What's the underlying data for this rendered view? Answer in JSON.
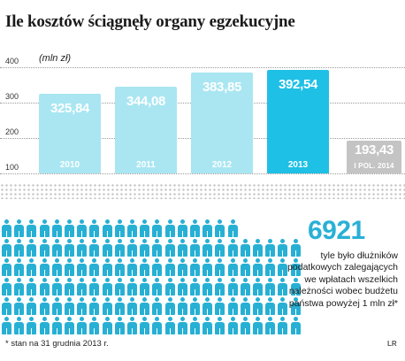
{
  "title": "Ile kosztów ściągnęły organy egzekucyjne",
  "unit_label": "(mln zł)",
  "chart_data": {
    "type": "bar",
    "title": "Ile kosztów ściągnęły organy egzekucyjne",
    "ylabel": "(mln zł)",
    "ylim": [
      100,
      400
    ],
    "yticks": [
      100,
      200,
      300,
      400
    ],
    "categories": [
      "2010",
      "2011",
      "2012",
      "2013",
      "I POL. 2014"
    ],
    "values": [
      325.84,
      344.08,
      383.85,
      392.54,
      193.43
    ],
    "value_labels": [
      "325,84",
      "344,08",
      "383,85",
      "392,54",
      "193,43"
    ],
    "grid": true
  },
  "colors": {
    "bar_light": "#a9e6f2",
    "bar_highlight": "#1fc0e6",
    "bar_last": "#c4c4c4",
    "person_icon": "#27b0d4",
    "big_number": "#2ab0d6"
  },
  "people": {
    "icon": "person-icon",
    "row_counts": [
      19,
      24,
      24,
      24,
      24,
      24
    ]
  },
  "stat": {
    "number": "6921",
    "description": "tyle było dłużników podatkowych zalegających we wpłatach wszelkich należności wobec budżetu państwa powyżej 1 mln zł*"
  },
  "footnote": "* stan na 31 grudnia 2013 r.",
  "credit": "LR"
}
